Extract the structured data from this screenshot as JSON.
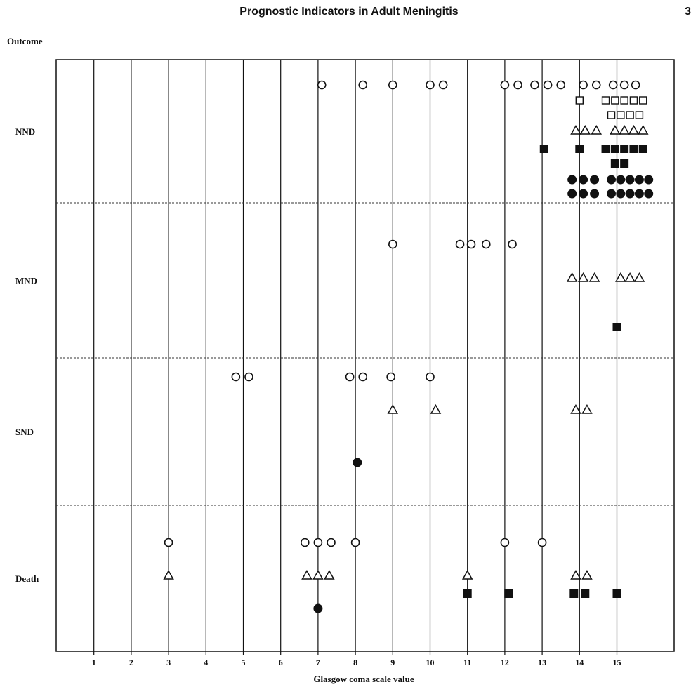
{
  "header": {
    "title": "Prognostic Indicators in Adult Meningitis",
    "page_number": "3"
  },
  "chart_data": {
    "type": "scatter",
    "title": "",
    "ylabel": "Outcome",
    "xlabel": "Glasgow coma scale value",
    "x_ticks": [
      "1",
      "2",
      "3",
      "4",
      "5",
      "6",
      "7",
      "8",
      "9",
      "10",
      "11",
      "12",
      "13",
      "14",
      "15"
    ],
    "categories": [
      "NND",
      "MND",
      "SND",
      "Death"
    ],
    "xlim": [
      0,
      16.5
    ],
    "grid": true,
    "series": [
      {
        "marker": "open-circle",
        "points": [
          {
            "x": 7.1,
            "outcome": "NND",
            "row": 0
          },
          {
            "x": 8.2,
            "outcome": "NND",
            "row": 0
          },
          {
            "x": 9.0,
            "outcome": "NND",
            "row": 0
          },
          {
            "x": 10.0,
            "outcome": "NND",
            "row": 0
          },
          {
            "x": 10.35,
            "outcome": "NND",
            "row": 0
          },
          {
            "x": 12.0,
            "outcome": "NND",
            "row": 0
          },
          {
            "x": 12.35,
            "outcome": "NND",
            "row": 0
          },
          {
            "x": 12.8,
            "outcome": "NND",
            "row": 0
          },
          {
            "x": 13.15,
            "outcome": "NND",
            "row": 0
          },
          {
            "x": 13.5,
            "outcome": "NND",
            "row": 0
          },
          {
            "x": 14.1,
            "outcome": "NND",
            "row": 0
          },
          {
            "x": 14.45,
            "outcome": "NND",
            "row": 0
          },
          {
            "x": 14.9,
            "outcome": "NND",
            "row": 0
          },
          {
            "x": 15.2,
            "outcome": "NND",
            "row": 0
          },
          {
            "x": 15.5,
            "outcome": "NND",
            "row": 0
          },
          {
            "x": 9.0,
            "outcome": "MND",
            "row": 0
          },
          {
            "x": 10.8,
            "outcome": "MND",
            "row": 0
          },
          {
            "x": 11.1,
            "outcome": "MND",
            "row": 0
          },
          {
            "x": 11.5,
            "outcome": "MND",
            "row": 0
          },
          {
            "x": 12.2,
            "outcome": "MND",
            "row": 0
          },
          {
            "x": 4.8,
            "outcome": "SND",
            "row": 0
          },
          {
            "x": 5.15,
            "outcome": "SND",
            "row": 0
          },
          {
            "x": 7.85,
            "outcome": "SND",
            "row": 0
          },
          {
            "x": 8.2,
            "outcome": "SND",
            "row": 0
          },
          {
            "x": 8.95,
            "outcome": "SND",
            "row": 0
          },
          {
            "x": 10.0,
            "outcome": "SND",
            "row": 0
          },
          {
            "x": 3.0,
            "outcome": "Death",
            "row": 0
          },
          {
            "x": 6.65,
            "outcome": "Death",
            "row": 0
          },
          {
            "x": 7.0,
            "outcome": "Death",
            "row": 0
          },
          {
            "x": 7.35,
            "outcome": "Death",
            "row": 0
          },
          {
            "x": 8.0,
            "outcome": "Death",
            "row": 0
          },
          {
            "x": 12.0,
            "outcome": "Death",
            "row": 0
          },
          {
            "x": 13.0,
            "outcome": "Death",
            "row": 0
          }
        ]
      },
      {
        "marker": "open-square",
        "points": [
          {
            "x": 14.0,
            "outcome": "NND",
            "row": 1
          },
          {
            "x": 14.7,
            "outcome": "NND",
            "row": 1
          },
          {
            "x": 14.95,
            "outcome": "NND",
            "row": 1
          },
          {
            "x": 15.2,
            "outcome": "NND",
            "row": 1
          },
          {
            "x": 15.45,
            "outcome": "NND",
            "row": 1
          },
          {
            "x": 15.7,
            "outcome": "NND",
            "row": 1
          },
          {
            "x": 14.85,
            "outcome": "NND",
            "row": 2
          },
          {
            "x": 15.1,
            "outcome": "NND",
            "row": 2
          },
          {
            "x": 15.35,
            "outcome": "NND",
            "row": 2
          },
          {
            "x": 15.6,
            "outcome": "NND",
            "row": 2
          }
        ]
      },
      {
        "marker": "open-triangle",
        "points": [
          {
            "x": 13.9,
            "outcome": "NND",
            "row": 3
          },
          {
            "x": 14.15,
            "outcome": "NND",
            "row": 3
          },
          {
            "x": 14.45,
            "outcome": "NND",
            "row": 3
          },
          {
            "x": 14.95,
            "outcome": "NND",
            "row": 3
          },
          {
            "x": 15.2,
            "outcome": "NND",
            "row": 3
          },
          {
            "x": 15.45,
            "outcome": "NND",
            "row": 3
          },
          {
            "x": 15.7,
            "outcome": "NND",
            "row": 3
          },
          {
            "x": 13.8,
            "outcome": "MND",
            "row": 2
          },
          {
            "x": 14.1,
            "outcome": "MND",
            "row": 2
          },
          {
            "x": 14.4,
            "outcome": "MND",
            "row": 2
          },
          {
            "x": 15.1,
            "outcome": "MND",
            "row": 2
          },
          {
            "x": 15.35,
            "outcome": "MND",
            "row": 2
          },
          {
            "x": 15.6,
            "outcome": "MND",
            "row": 2
          },
          {
            "x": 9.0,
            "outcome": "SND",
            "row": 1
          },
          {
            "x": 10.15,
            "outcome": "SND",
            "row": 1
          },
          {
            "x": 13.9,
            "outcome": "SND",
            "row": 1
          },
          {
            "x": 14.2,
            "outcome": "SND",
            "row": 1
          },
          {
            "x": 3.0,
            "outcome": "Death",
            "row": 1
          },
          {
            "x": 6.7,
            "outcome": "Death",
            "row": 1
          },
          {
            "x": 7.0,
            "outcome": "Death",
            "row": 1
          },
          {
            "x": 7.3,
            "outcome": "Death",
            "row": 1
          },
          {
            "x": 11.0,
            "outcome": "Death",
            "row": 1
          },
          {
            "x": 13.9,
            "outcome": "Death",
            "row": 1
          },
          {
            "x": 14.2,
            "outcome": "Death",
            "row": 1
          }
        ]
      },
      {
        "marker": "filled-square",
        "points": [
          {
            "x": 13.05,
            "outcome": "NND",
            "row": 4
          },
          {
            "x": 14.0,
            "outcome": "NND",
            "row": 4
          },
          {
            "x": 14.7,
            "outcome": "NND",
            "row": 4
          },
          {
            "x": 14.95,
            "outcome": "NND",
            "row": 4
          },
          {
            "x": 15.2,
            "outcome": "NND",
            "row": 4
          },
          {
            "x": 15.45,
            "outcome": "NND",
            "row": 4
          },
          {
            "x": 15.7,
            "outcome": "NND",
            "row": 4
          },
          {
            "x": 14.95,
            "outcome": "NND",
            "row": 5
          },
          {
            "x": 15.2,
            "outcome": "NND",
            "row": 5
          },
          {
            "x": 15.0,
            "outcome": "MND",
            "row": 3
          },
          {
            "x": 11.0,
            "outcome": "Death",
            "row": 2
          },
          {
            "x": 12.1,
            "outcome": "Death",
            "row": 2
          },
          {
            "x": 13.85,
            "outcome": "Death",
            "row": 2
          },
          {
            "x": 14.15,
            "outcome": "Death",
            "row": 2
          },
          {
            "x": 15.0,
            "outcome": "Death",
            "row": 2
          }
        ]
      },
      {
        "marker": "filled-circle",
        "points": [
          {
            "x": 13.8,
            "outcome": "NND",
            "row": 6
          },
          {
            "x": 14.1,
            "outcome": "NND",
            "row": 6
          },
          {
            "x": 14.4,
            "outcome": "NND",
            "row": 6
          },
          {
            "x": 14.85,
            "outcome": "NND",
            "row": 6
          },
          {
            "x": 15.1,
            "outcome": "NND",
            "row": 6
          },
          {
            "x": 15.35,
            "outcome": "NND",
            "row": 6
          },
          {
            "x": 15.6,
            "outcome": "NND",
            "row": 6
          },
          {
            "x": 15.85,
            "outcome": "NND",
            "row": 6
          },
          {
            "x": 13.8,
            "outcome": "NND",
            "row": 7
          },
          {
            "x": 14.1,
            "outcome": "NND",
            "row": 7
          },
          {
            "x": 14.4,
            "outcome": "NND",
            "row": 7
          },
          {
            "x": 14.85,
            "outcome": "NND",
            "row": 7
          },
          {
            "x": 15.1,
            "outcome": "NND",
            "row": 7
          },
          {
            "x": 15.35,
            "outcome": "NND",
            "row": 7
          },
          {
            "x": 15.6,
            "outcome": "NND",
            "row": 7
          },
          {
            "x": 15.85,
            "outcome": "NND",
            "row": 7
          },
          {
            "x": 8.05,
            "outcome": "SND",
            "row": 2
          },
          {
            "x": 7.0,
            "outcome": "Death",
            "row": 3
          }
        ]
      }
    ]
  }
}
